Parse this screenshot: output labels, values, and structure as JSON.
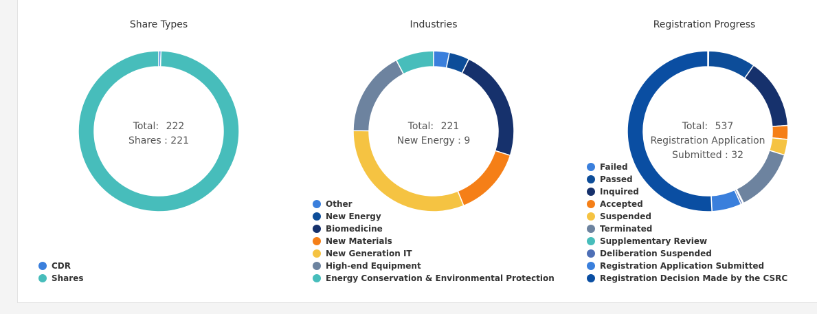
{
  "chart_data": [
    {
      "type": "pie",
      "title": "Share Types",
      "center": {
        "total_label": "Total:",
        "total_value": "222",
        "highlight": "Shares : 221"
      },
      "series": [
        {
          "name": "CDR",
          "value": 1,
          "color": "#3a7fdc"
        },
        {
          "name": "Shares",
          "value": 221,
          "color": "#47bdbb"
        }
      ]
    },
    {
      "type": "pie",
      "title": "Industries",
      "center": {
        "total_label": "Total:",
        "total_value": "221",
        "highlight": "New Energy : 9"
      },
      "series": [
        {
          "name": "Other",
          "value": 7,
          "color": "#3a7fdc"
        },
        {
          "name": "New Energy",
          "value": 9,
          "color": "#0d4d99"
        },
        {
          "name": "Biomedicine",
          "value": 50,
          "color": "#16316c"
        },
        {
          "name": "New Materials",
          "value": 31,
          "color": "#f57f17"
        },
        {
          "name": "New Generation IT",
          "value": 69,
          "color": "#f5c342"
        },
        {
          "name": "High-end Equipment",
          "value": 38,
          "color": "#6d839f"
        },
        {
          "name": "Energy Conservation & Environmental Protection",
          "value": 17,
          "color": "#47bdbb"
        }
      ]
    },
    {
      "type": "pie",
      "title": "Registration Progress",
      "center": {
        "total_label": "Total:",
        "total_value": "537",
        "highlight_lines": [
          "Registration Application",
          "Submitted : 32"
        ]
      },
      "series": [
        {
          "name": "Failed",
          "value": 1,
          "color": "#3a7fdc"
        },
        {
          "name": "Passed",
          "value": 51,
          "color": "#0d4d99"
        },
        {
          "name": "Inquired",
          "value": 76,
          "color": "#16316c"
        },
        {
          "name": "Accepted",
          "value": 15,
          "color": "#f57f17"
        },
        {
          "name": "Suspended",
          "value": 17,
          "color": "#f5c342"
        },
        {
          "name": "Terminated",
          "value": 69,
          "color": "#6d839f"
        },
        {
          "name": "Supplementary Review",
          "value": 1,
          "color": "#47bdbb"
        },
        {
          "name": "Deliberation Suspended",
          "value": 2,
          "color": "#4e6fb6"
        },
        {
          "name": "Registration Application Submitted",
          "value": 32,
          "color": "#3a7fdc"
        },
        {
          "name": "Registration Decision Made by the CSRC",
          "value": 273,
          "color": "#0a4ea2"
        }
      ]
    }
  ]
}
